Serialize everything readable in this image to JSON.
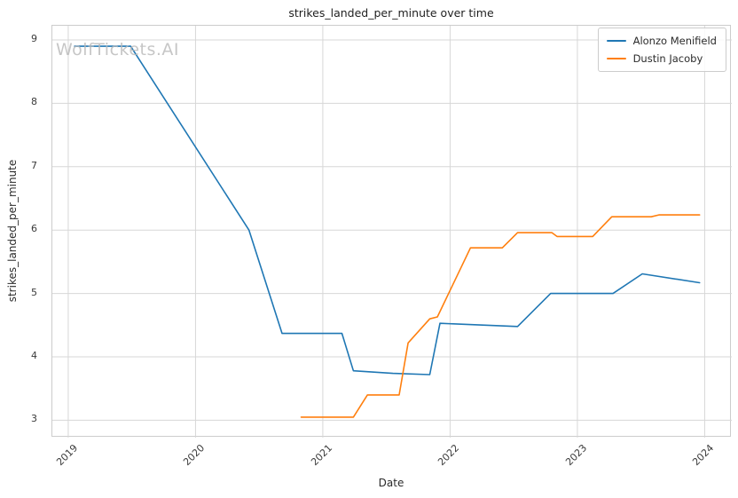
{
  "watermark": "WolfTickets.AI",
  "chart_data": {
    "type": "line",
    "title": "strikes_landed_per_minute over time",
    "xlabel": "Date",
    "ylabel": "strikes_landed_per_minute",
    "xlim": [
      2018.875,
      2024.213
    ],
    "ylim": [
      2.726,
      9.224
    ],
    "x_ticks": [
      2019,
      2020,
      2021,
      2022,
      2023,
      2024
    ],
    "y_ticks": [
      3,
      4,
      5,
      6,
      7,
      8,
      9
    ],
    "grid": true,
    "grid_color": "#d7d7d7",
    "text_color": "#3a3a3a",
    "legend_position": "upper right",
    "series": [
      {
        "name": "Alonzo Menifield",
        "color": "#1f77b4",
        "points": [
          [
            2019.05,
            8.9
          ],
          [
            2019.49,
            8.9
          ],
          [
            2020.42,
            6.0
          ],
          [
            2020.68,
            4.37
          ],
          [
            2021.15,
            4.37
          ],
          [
            2021.24,
            3.78
          ],
          [
            2021.55,
            3.74
          ],
          [
            2021.84,
            3.72
          ],
          [
            2021.92,
            4.53
          ],
          [
            2022.15,
            4.51
          ],
          [
            2022.53,
            4.48
          ],
          [
            2022.79,
            5.0
          ],
          [
            2023.28,
            5.0
          ],
          [
            2023.51,
            5.31
          ],
          [
            2023.96,
            5.17
          ]
        ]
      },
      {
        "name": "Dustin Jacoby",
        "color": "#ff7f0e",
        "points": [
          [
            2020.83,
            3.05
          ],
          [
            2021.24,
            3.05
          ],
          [
            2021.35,
            3.4
          ],
          [
            2021.6,
            3.4
          ],
          [
            2021.67,
            4.22
          ],
          [
            2021.84,
            4.6
          ],
          [
            2021.9,
            4.63
          ],
          [
            2022.16,
            5.72
          ],
          [
            2022.41,
            5.72
          ],
          [
            2022.53,
            5.96
          ],
          [
            2022.8,
            5.96
          ],
          [
            2022.84,
            5.9
          ],
          [
            2023.12,
            5.9
          ],
          [
            2023.27,
            6.21
          ],
          [
            2023.58,
            6.21
          ],
          [
            2023.64,
            6.24
          ],
          [
            2023.96,
            6.24
          ]
        ]
      }
    ]
  }
}
